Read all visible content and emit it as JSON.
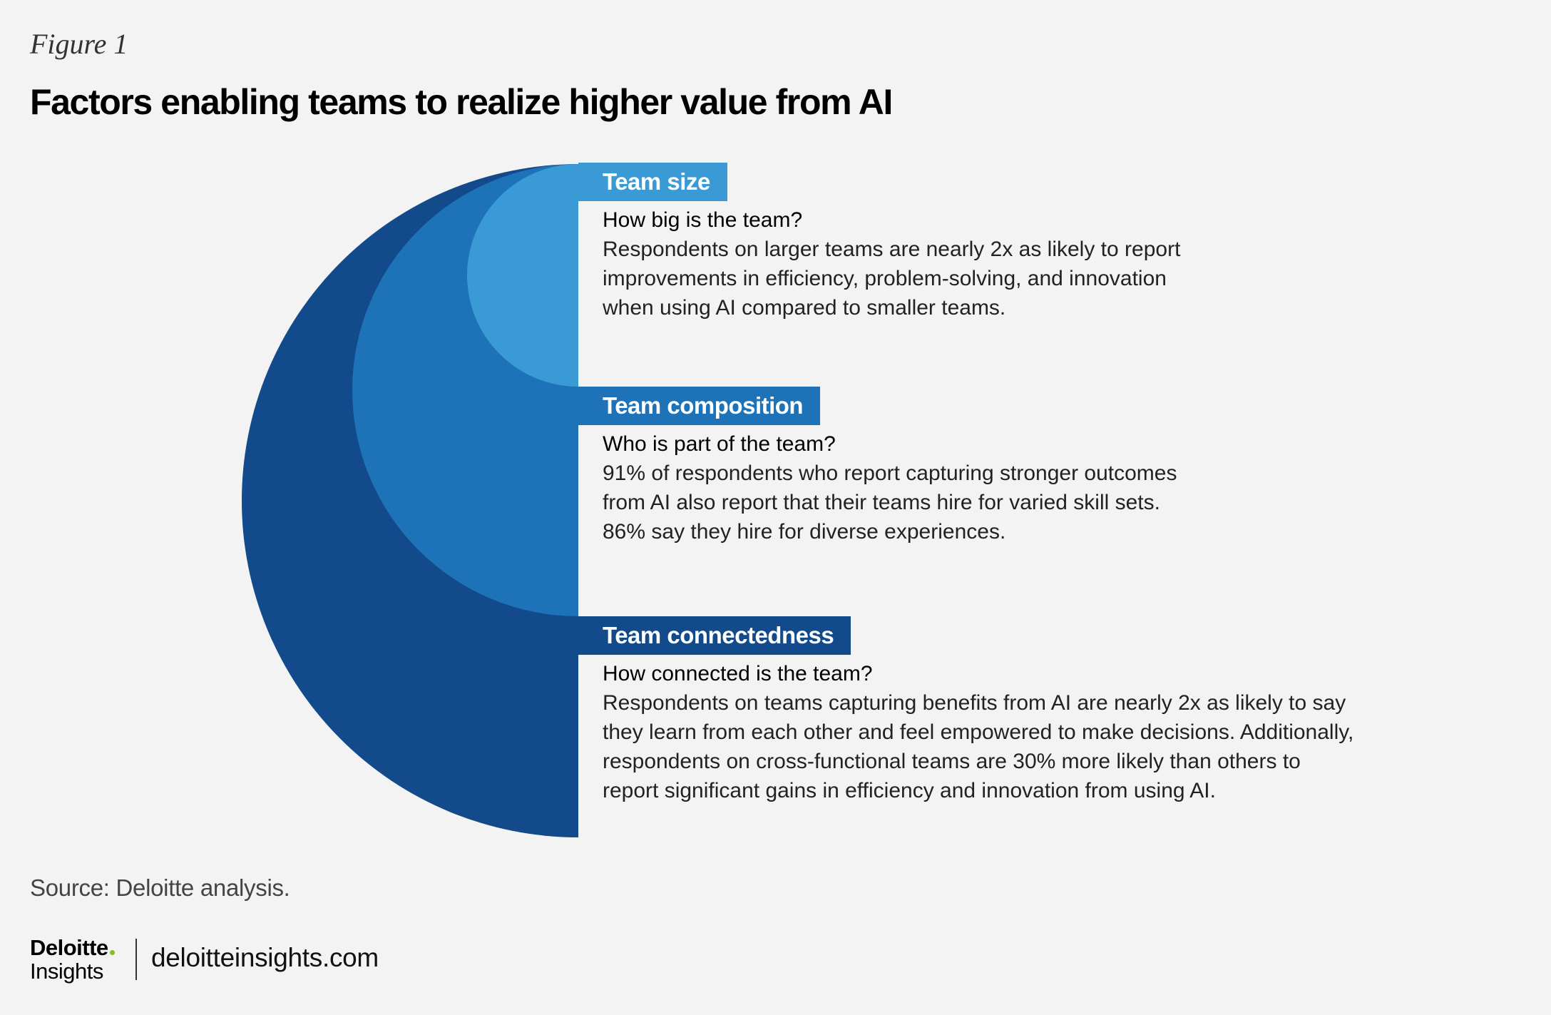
{
  "figure_label": "Figure 1",
  "title": "Factors enabling teams to realize higher value from AI",
  "sections": [
    {
      "label": "Team size",
      "question": "How big is the team?",
      "body_lines": [
        "Respondents on larger teams are nearly 2x as likely to report",
        "improvements in efficiency, problem-solving, and innovation",
        "when using AI compared to smaller teams."
      ],
      "color": "#3a9ad6"
    },
    {
      "label": "Team composition",
      "question": "Who is part of the team?",
      "body_lines": [
        "91% of respondents who report capturing stronger outcomes",
        "from AI also report that their teams hire for varied skill sets.",
        "86% say they hire for diverse experiences."
      ],
      "color": "#1e73b8"
    },
    {
      "label": "Team connectedness",
      "question": "How connected is the team?",
      "body_lines": [
        "Respondents on teams capturing benefits from AI are nearly 2x as likely to say",
        "they learn from each other and feel empowered to make decisions. Additionally,",
        "respondents on cross-functional teams are 30% more likely than others to",
        "report significant gains in efficiency and innovation from using AI."
      ],
      "color": "#124a8c"
    }
  ],
  "source": "Source: Deloitte analysis.",
  "brand": {
    "name": "Deloitte",
    "sub": "Insights",
    "site": "deloitteinsights.com"
  }
}
